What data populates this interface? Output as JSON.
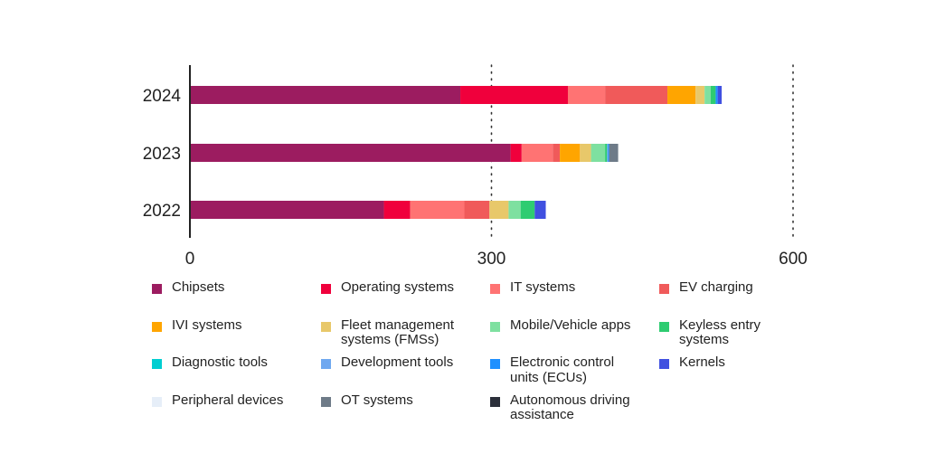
{
  "chart_data": {
    "type": "bar",
    "orientation": "horizontal",
    "stacked": true,
    "categories": [
      "2024",
      "2023",
      "2022"
    ],
    "xlim": [
      0,
      600
    ],
    "xticks": [
      "0",
      "300",
      "600"
    ],
    "grid": "vertical dotted",
    "legend_position": "bottom",
    "series": [
      {
        "name": "Chipsets",
        "color": "#9C1C60",
        "values": [
          269,
          319,
          193
        ]
      },
      {
        "name": "Operating systems",
        "color": "#F0003C",
        "values": [
          107,
          11,
          26
        ]
      },
      {
        "name": "IT systems",
        "color": "#FF7373",
        "values": [
          37,
          31,
          54
        ]
      },
      {
        "name": "EV charging",
        "color": "#F05A5A",
        "values": [
          62,
          7,
          25
        ]
      },
      {
        "name": "IVI systems",
        "color": "#FFA500",
        "values": [
          28,
          20,
          0
        ]
      },
      {
        "name": "Fleet management systems (FMSs)",
        "color": "#E8C86A",
        "values": [
          9,
          11,
          19
        ]
      },
      {
        "name": "Mobile/Vehicle apps",
        "color": "#7EE0A0",
        "values": [
          6,
          14,
          12
        ]
      },
      {
        "name": "Keyless entry systems",
        "color": "#2ECC71",
        "values": [
          5,
          2,
          14
        ]
      },
      {
        "name": "Diagnostic tools",
        "color": "#00CED1",
        "values": [
          0,
          0,
          0
        ]
      },
      {
        "name": "Development tools",
        "color": "#6FA8F0",
        "values": [
          0,
          1,
          0
        ]
      },
      {
        "name": "Electronic control units (ECUs)",
        "color": "#1E90FF",
        "values": [
          2,
          1,
          0
        ]
      },
      {
        "name": "Kernels",
        "color": "#4050E0",
        "values": [
          4,
          0,
          11
        ]
      },
      {
        "name": "Peripheral devices",
        "color": "#E6EEF8",
        "values": [
          0,
          0,
          0
        ]
      },
      {
        "name": "OT systems",
        "color": "#6E7B88",
        "values": [
          0,
          9,
          0
        ]
      },
      {
        "name": "Autonomous driving assistance",
        "color": "#2B2F3A",
        "values": [
          0,
          0,
          0
        ]
      }
    ]
  }
}
